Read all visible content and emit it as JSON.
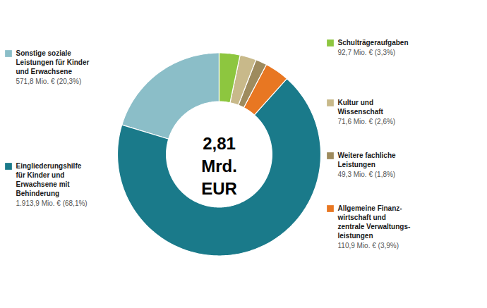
{
  "chart_data": {
    "type": "donut",
    "categories": [
      "Sonstige soziale\nLeistungen für Kinder\nund Erwachsene",
      "Eingliederungshilfe\nfür Kinder und\nErwachsene mit\nBehinderung",
      "Allgemeine Finanz-\nwirtschaft und\nzentrale Verwaltungs-\nleistungen",
      "Weitere fachliche\nLeistungen",
      "Kultur und\nWissenschaft",
      "Schulträgeraufgaben"
    ],
    "values": [
      20.3,
      68.1,
      3.9,
      1.8,
      2.6,
      3.3
    ],
    "value_labels": [
      "571,8 Mio. € (20,3%)",
      "1.913,9 Mio. € (68,1%)",
      "110,9 Mio. € (3,9%)",
      "49,3 Mio. € (1,8%)",
      "71,6 Mio. € (2,6%)",
      "92,7 Mio. € (3,3%)"
    ],
    "colors": [
      "#8bbec8",
      "#1a7a8a",
      "#e87722",
      "#9e8b5e",
      "#c8b98a",
      "#8dc63f"
    ],
    "annotations": [
      "2,81",
      "Mrd.",
      "EUR"
    ]
  }
}
